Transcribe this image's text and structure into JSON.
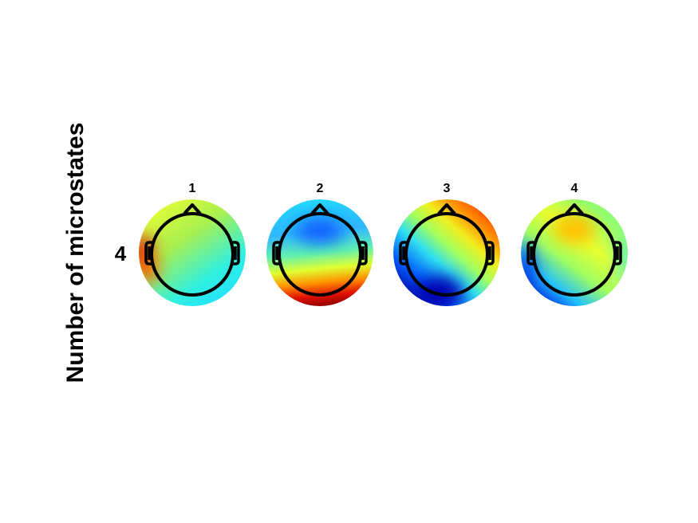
{
  "ylabel": "Number of microstates",
  "rows": [
    {
      "label": "4",
      "maps": [
        {
          "title": "1"
        },
        {
          "title": "2"
        },
        {
          "title": "3"
        },
        {
          "title": "4"
        }
      ]
    }
  ]
}
